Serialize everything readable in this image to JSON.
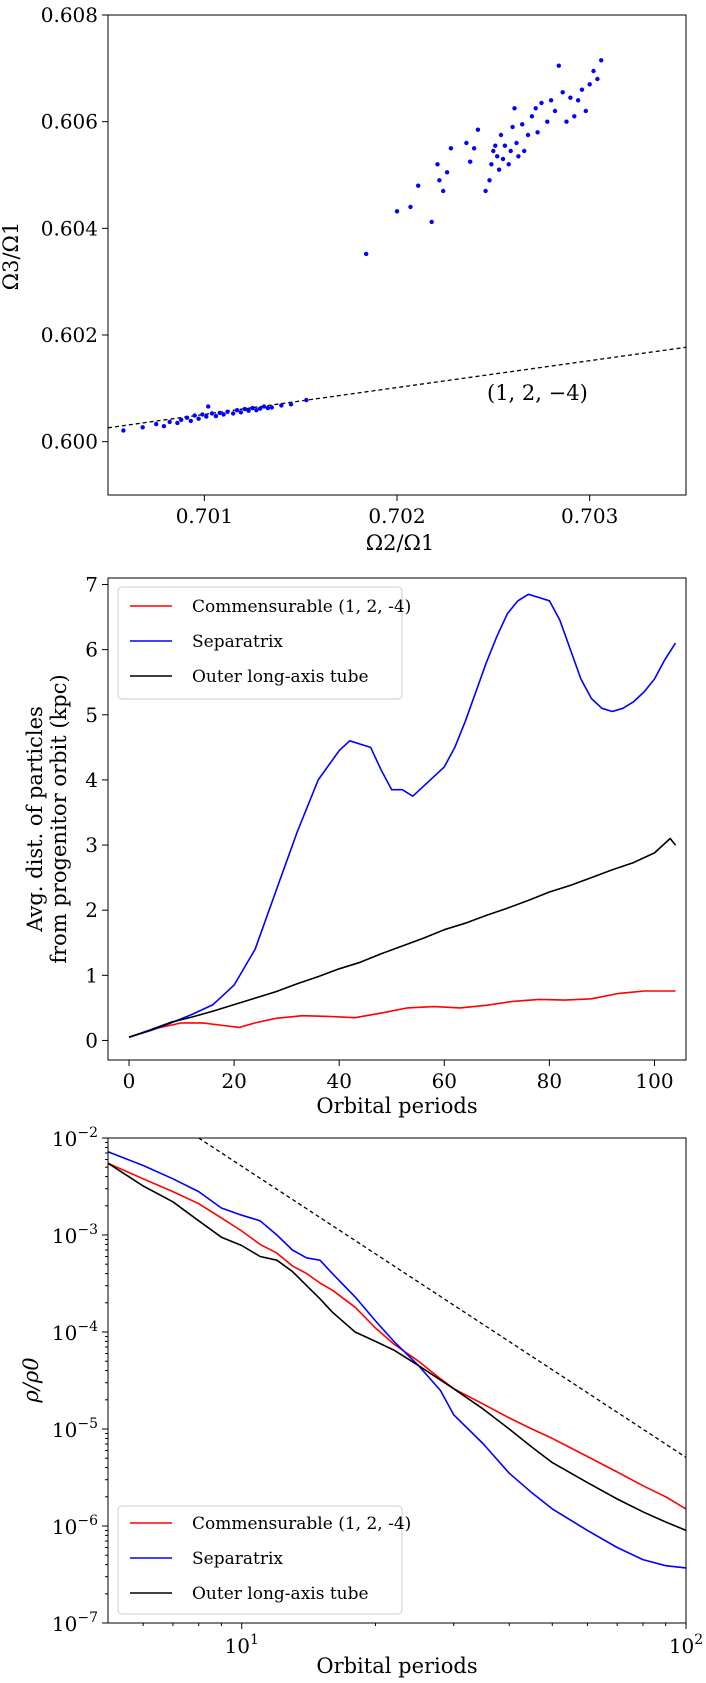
{
  "chart_data": [
    {
      "type": "scatter",
      "xlabel": "Ω2/Ω1",
      "ylabel": "Ω3/Ω1",
      "xlim": [
        0.7005,
        0.7035
      ],
      "ylim": [
        0.599,
        0.608
      ],
      "xticks": [
        0.701,
        0.702,
        0.703
      ],
      "yticks": [
        0.6,
        0.602,
        0.604,
        0.606,
        0.608
      ],
      "xtick_labels": [
        "0.701",
        "0.702",
        "0.703"
      ],
      "ytick_labels": [
        "0.600",
        "0.602",
        "0.604",
        "0.606",
        "0.608"
      ],
      "point_color": "#0000ff",
      "reference_line": {
        "label": "(1, 2, −4)",
        "x": [
          0.7005,
          0.7035
        ],
        "y": [
          0.60026,
          0.60177
        ],
        "style": "dashed",
        "color": "#000000"
      },
      "points": [
        [
          0.70058,
          0.60021
        ],
        [
          0.70068,
          0.60027
        ],
        [
          0.70075,
          0.60033
        ],
        [
          0.70079,
          0.60029
        ],
        [
          0.70082,
          0.60037
        ],
        [
          0.70086,
          0.60035
        ],
        [
          0.70088,
          0.60041
        ],
        [
          0.70091,
          0.60045
        ],
        [
          0.70093,
          0.60039
        ],
        [
          0.70095,
          0.60049
        ],
        [
          0.70097,
          0.60043
        ],
        [
          0.70099,
          0.60051
        ],
        [
          0.70101,
          0.60047
        ],
        [
          0.70102,
          0.60066
        ],
        [
          0.70104,
          0.60053
        ],
        [
          0.70106,
          0.60048
        ],
        [
          0.70108,
          0.60054
        ],
        [
          0.7011,
          0.60051
        ],
        [
          0.70112,
          0.60056
        ],
        [
          0.70115,
          0.60053
        ],
        [
          0.70117,
          0.60059
        ],
        [
          0.70119,
          0.60055
        ],
        [
          0.70121,
          0.60061
        ],
        [
          0.70123,
          0.60058
        ],
        [
          0.70125,
          0.60063
        ],
        [
          0.70127,
          0.60059
        ],
        [
          0.70129,
          0.60062
        ],
        [
          0.70131,
          0.60066
        ],
        [
          0.70133,
          0.60063
        ],
        [
          0.70135,
          0.60064
        ],
        [
          0.7014,
          0.60068
        ],
        [
          0.70145,
          0.6007
        ],
        [
          0.70153,
          0.60078
        ],
        [
          0.70184,
          0.60352
        ],
        [
          0.702,
          0.60432
        ],
        [
          0.70207,
          0.6044
        ],
        [
          0.70211,
          0.6048
        ],
        [
          0.70218,
          0.60412
        ],
        [
          0.70221,
          0.6052
        ],
        [
          0.70222,
          0.6049
        ],
        [
          0.70224,
          0.6047
        ],
        [
          0.70226,
          0.60505
        ],
        [
          0.70228,
          0.6055
        ],
        [
          0.70236,
          0.6056
        ],
        [
          0.70238,
          0.60525
        ],
        [
          0.7024,
          0.6055
        ],
        [
          0.70242,
          0.60585
        ],
        [
          0.70246,
          0.6047
        ],
        [
          0.70248,
          0.6049
        ],
        [
          0.70249,
          0.6052
        ],
        [
          0.7025,
          0.60545
        ],
        [
          0.70251,
          0.60555
        ],
        [
          0.70252,
          0.60535
        ],
        [
          0.70253,
          0.6051
        ],
        [
          0.70254,
          0.60575
        ],
        [
          0.70255,
          0.6053
        ],
        [
          0.70256,
          0.60555
        ],
        [
          0.70258,
          0.6052
        ],
        [
          0.70259,
          0.60545
        ],
        [
          0.7026,
          0.6059
        ],
        [
          0.70261,
          0.60625
        ],
        [
          0.70262,
          0.6056
        ],
        [
          0.70263,
          0.60535
        ],
        [
          0.70265,
          0.60595
        ],
        [
          0.70266,
          0.60545
        ],
        [
          0.70268,
          0.60575
        ],
        [
          0.7027,
          0.6061
        ],
        [
          0.70272,
          0.60625
        ],
        [
          0.70273,
          0.6058
        ],
        [
          0.70275,
          0.60635
        ],
        [
          0.70278,
          0.606
        ],
        [
          0.7028,
          0.6064
        ],
        [
          0.70282,
          0.6062
        ],
        [
          0.70284,
          0.60705
        ],
        [
          0.70286,
          0.60655
        ],
        [
          0.70288,
          0.606
        ],
        [
          0.7029,
          0.60645
        ],
        [
          0.70292,
          0.6061
        ],
        [
          0.70294,
          0.6064
        ],
        [
          0.70296,
          0.6066
        ],
        [
          0.70298,
          0.6062
        ],
        [
          0.703,
          0.6067
        ],
        [
          0.70302,
          0.60695
        ],
        [
          0.70304,
          0.6068
        ],
        [
          0.70306,
          0.60715
        ]
      ]
    },
    {
      "type": "line",
      "xlabel": "Orbital periods",
      "ylabel": "Avg. dist. of particles from progenitor orbit (kpc)",
      "ylabel_lines": [
        "Avg. dist. of particles",
        "from progenitor orbit (kpc)"
      ],
      "xlim": [
        -4,
        106
      ],
      "ylim": [
        -0.3,
        7.1
      ],
      "xticks": [
        0,
        20,
        40,
        60,
        80,
        100
      ],
      "yticks": [
        0,
        1,
        2,
        3,
        4,
        5,
        6,
        7
      ],
      "xtick_labels": [
        "0",
        "20",
        "40",
        "60",
        "80",
        "100"
      ],
      "ytick_labels": [
        "0",
        "1",
        "2",
        "3",
        "4",
        "5",
        "6",
        "7"
      ],
      "legend": {
        "placement": "top-left"
      },
      "series": [
        {
          "name": "Commensurable (1, 2, -4)",
          "color": "#ff0000",
          "x": [
            0,
            3,
            6,
            10,
            14,
            18,
            21,
            24,
            28,
            33,
            38,
            43,
            48,
            53,
            58,
            63,
            68,
            73,
            78,
            83,
            88,
            93,
            98,
            104
          ],
          "y": [
            0.05,
            0.13,
            0.2,
            0.27,
            0.27,
            0.23,
            0.2,
            0.27,
            0.34,
            0.38,
            0.37,
            0.35,
            0.42,
            0.5,
            0.52,
            0.5,
            0.54,
            0.6,
            0.63,
            0.62,
            0.64,
            0.72,
            0.76,
            0.76
          ]
        },
        {
          "name": "Separatrix",
          "color": "#0000ff",
          "x": [
            0,
            4,
            8,
            12,
            16,
            20,
            24,
            28,
            32,
            36,
            40,
            42,
            44,
            46,
            48,
            50,
            52,
            54,
            56,
            58,
            60,
            62,
            64,
            66,
            68,
            70,
            72,
            74,
            76,
            78,
            80,
            82,
            84,
            86,
            88,
            90,
            92,
            94,
            96,
            98,
            100,
            102,
            104
          ],
          "y": [
            0.05,
            0.15,
            0.27,
            0.4,
            0.55,
            0.85,
            1.4,
            2.3,
            3.2,
            4.0,
            4.45,
            4.6,
            4.55,
            4.5,
            4.15,
            3.85,
            3.85,
            3.75,
            3.9,
            4.05,
            4.2,
            4.5,
            4.9,
            5.35,
            5.8,
            6.2,
            6.55,
            6.75,
            6.85,
            6.8,
            6.75,
            6.45,
            6.0,
            5.55,
            5.25,
            5.1,
            5.05,
            5.1,
            5.2,
            5.35,
            5.55,
            5.85,
            6.1
          ]
        },
        {
          "name": "Outer long-axis tube",
          "color": "#000000",
          "x": [
            0,
            4,
            8,
            12,
            16,
            20,
            24,
            28,
            32,
            36,
            40,
            44,
            48,
            52,
            56,
            60,
            64,
            68,
            72,
            76,
            80,
            84,
            88,
            92,
            96,
            100,
            103,
            104
          ],
          "y": [
            0.05,
            0.16,
            0.28,
            0.36,
            0.45,
            0.55,
            0.65,
            0.75,
            0.87,
            0.98,
            1.1,
            1.2,
            1.33,
            1.45,
            1.57,
            1.7,
            1.8,
            1.92,
            2.03,
            2.15,
            2.28,
            2.38,
            2.5,
            2.62,
            2.73,
            2.88,
            3.1,
            3.0
          ]
        }
      ]
    },
    {
      "type": "line",
      "scale": "log-log",
      "xlabel": "Orbital periods",
      "ylabel": "ρ/ρ0",
      "xlim": [
        5,
        100
      ],
      "ylim": [
        1e-07,
        0.01
      ],
      "xticks": [
        10,
        100
      ],
      "yticks": [
        1e-07,
        1e-06,
        1e-05,
        0.0001,
        0.001,
        0.01
      ],
      "xtick_labels": [
        "10^1",
        "10^2"
      ],
      "ytick_labels": [
        "10^-7",
        "10^-6",
        "10^-5",
        "10^-4",
        "10^-3",
        "10^-2"
      ],
      "legend": {
        "placement": "bottom-left"
      },
      "reference_line": {
        "x": [
          8,
          100
        ],
        "y": [
          0.01,
          5.1e-06
        ],
        "style": "dashed",
        "color": "#000000"
      },
      "series": [
        {
          "name": "Commensurable (1, 2, -4)",
          "color": "#ff0000",
          "x": [
            5,
            6,
            7,
            8,
            9,
            10,
            11,
            12,
            13,
            14,
            15,
            16,
            18,
            20,
            22,
            25,
            28,
            30,
            35,
            40,
            45,
            50,
            60,
            70,
            80,
            90,
            100
          ],
          "y": [
            0.0055,
            0.0038,
            0.0028,
            0.0021,
            0.0015,
            0.0011,
            0.0008,
            0.00065,
            0.00048,
            0.0004,
            0.00032,
            0.00027,
            0.00018,
            0.00011,
            7.5e-05,
            5e-05,
            3.3e-05,
            2.6e-05,
            1.8e-05,
            1.3e-05,
            1e-05,
            8e-06,
            5.2e-06,
            3.6e-06,
            2.6e-06,
            2e-06,
            1.5e-06
          ]
        },
        {
          "name": "Separatrix",
          "color": "#0000ff",
          "x": [
            5,
            6,
            7,
            8,
            9,
            10,
            11,
            12,
            13,
            14,
            15,
            16,
            18,
            20,
            22,
            25,
            28,
            30,
            35,
            40,
            45,
            50,
            60,
            70,
            80,
            90,
            100
          ],
          "y": [
            0.0072,
            0.0052,
            0.0038,
            0.0028,
            0.0019,
            0.0016,
            0.0014,
            0.001,
            0.0007,
            0.00058,
            0.00055,
            0.0004,
            0.00023,
            0.00013,
            8e-05,
            4.5e-05,
            2.5e-05,
            1.4e-05,
            7e-06,
            3.5e-06,
            2.2e-06,
            1.5e-06,
            9e-07,
            6e-07,
            4.5e-07,
            3.9e-07,
            3.7e-07
          ]
        },
        {
          "name": "Outer long-axis tube",
          "color": "#000000",
          "x": [
            5,
            6,
            7,
            8,
            9,
            10,
            11,
            12,
            13,
            14,
            15,
            16,
            18,
            20,
            22,
            25,
            28,
            30,
            35,
            40,
            45,
            50,
            60,
            70,
            80,
            90,
            100
          ],
          "y": [
            0.0055,
            0.0032,
            0.0022,
            0.0014,
            0.00095,
            0.00078,
            0.0006,
            0.00055,
            0.00042,
            0.0003,
            0.00022,
            0.00016,
            0.0001,
            8e-05,
            6.5e-05,
            4.5e-05,
            3.2e-05,
            2.6e-05,
            1.6e-05,
            1e-05,
            6.5e-06,
            4.5e-06,
            2.8e-06,
            1.9e-06,
            1.4e-06,
            1.1e-06,
            9e-07
          ]
        }
      ]
    }
  ]
}
